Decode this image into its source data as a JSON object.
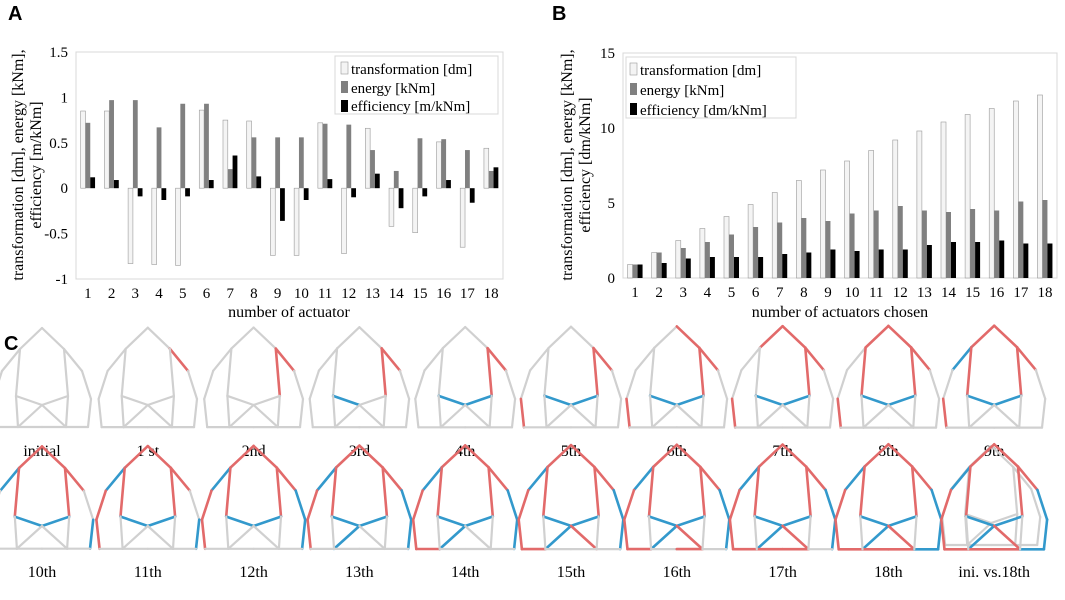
{
  "panel_labels": {
    "a": "A",
    "b": "B",
    "c": "C"
  },
  "colors": {
    "transformation": "#f4f4f4",
    "energy": "#808080",
    "efficiency": "#000000",
    "red": "#e26a6a",
    "blue": "#3399cc",
    "gray": "#d0d0d0"
  },
  "chart_data": [
    {
      "id": "A",
      "type": "bar",
      "title": "",
      "xlabel": "number of actuator",
      "ylabel": "transformation [dm], energy [kNm], efficiency [m/kNm]",
      "ylabel_lines": [
        "transformation [dm], energy [kNm],",
        "efficiency [m/kNm]"
      ],
      "ylim": [
        -1,
        1.5
      ],
      "yticks": [
        -1,
        -0.5,
        0,
        0.5,
        1,
        1.5
      ],
      "ytick_labels": [
        "-1",
        "-0.5",
        "0",
        "0.5",
        "1",
        "1.5"
      ],
      "legend_position": "top-right",
      "categories": [
        "1",
        "2",
        "3",
        "4",
        "5",
        "6",
        "7",
        "8",
        "9",
        "10",
        "11",
        "12",
        "13",
        "14",
        "15",
        "16",
        "17",
        "18"
      ],
      "series": [
        {
          "name": "transformation [dm]",
          "values": [
            0.85,
            0.85,
            -0.83,
            -0.84,
            -0.85,
            0.86,
            0.75,
            0.74,
            -0.74,
            -0.74,
            0.72,
            -0.72,
            0.66,
            -0.42,
            -0.49,
            0.51,
            -0.65,
            0.44
          ]
        },
        {
          "name": "energy [kNm]",
          "values": [
            0.72,
            0.97,
            0.97,
            0.67,
            0.93,
            0.93,
            0.21,
            0.56,
            0.56,
            0.56,
            0.71,
            0.7,
            0.42,
            0.19,
            0.55,
            0.54,
            0.42,
            0.19
          ]
        },
        {
          "name": "efficiency [m/kNm]",
          "values": [
            0.12,
            0.09,
            -0.09,
            -0.13,
            -0.09,
            0.09,
            0.36,
            0.13,
            -0.36,
            -0.13,
            0.1,
            -0.1,
            0.16,
            -0.22,
            -0.09,
            0.09,
            -0.16,
            0.23
          ]
        }
      ]
    },
    {
      "id": "B",
      "type": "bar",
      "title": "",
      "xlabel": "number of actuators chosen",
      "ylabel": "transformation [dm], energy [kNm], efficiency [dm/kNm]",
      "ylabel_lines": [
        "transformation [dm], energy [kNm],",
        "efficiency [dm/kNm]"
      ],
      "ylim": [
        0,
        15
      ],
      "yticks": [
        0,
        5,
        10,
        15
      ],
      "ytick_labels": [
        "0",
        "5",
        "10",
        "15"
      ],
      "legend_position": "top-left",
      "categories": [
        "1",
        "2",
        "3",
        "4",
        "5",
        "6",
        "7",
        "8",
        "9",
        "10",
        "11",
        "12",
        "13",
        "14",
        "15",
        "16",
        "17",
        "18"
      ],
      "series": [
        {
          "name": "transformation [dm]",
          "values": [
            0.9,
            1.7,
            2.5,
            3.3,
            4.1,
            4.9,
            5.7,
            6.5,
            7.2,
            7.8,
            8.5,
            9.2,
            9.8,
            10.4,
            10.9,
            11.3,
            11.8,
            12.2
          ]
        },
        {
          "name": "energy [kNm]",
          "values": [
            0.9,
            1.7,
            2.0,
            2.4,
            2.9,
            3.4,
            3.7,
            4.0,
            3.8,
            4.3,
            4.5,
            4.8,
            4.5,
            4.4,
            4.6,
            4.5,
            5.1,
            5.2
          ]
        },
        {
          "name": "efficiency [dm/kNm]",
          "values": [
            0.9,
            1.0,
            1.3,
            1.4,
            1.4,
            1.4,
            1.6,
            1.7,
            1.9,
            1.8,
            1.9,
            1.9,
            2.2,
            2.4,
            2.4,
            2.5,
            2.3,
            2.3
          ]
        }
      ]
    }
  ],
  "stages": {
    "labels": [
      "initial",
      "1 st",
      "2nd",
      "3rd",
      "4th",
      "5th",
      "6th",
      "7th",
      "8th",
      "9th",
      "10th",
      "11th",
      "12th",
      "13th",
      "14th",
      "15th",
      "16th",
      "17th",
      "18th",
      "ini. vs.18th"
    ],
    "actuator_order": [
      4,
      8,
      9,
      10,
      11,
      2,
      1,
      7,
      3,
      12,
      5,
      6,
      13,
      15,
      14,
      17,
      16,
      18
    ],
    "actuator_color": [
      "r",
      "r",
      "b",
      "b",
      "r",
      "r",
      "r",
      "r",
      "b",
      "b",
      "r",
      "b",
      "b",
      "r",
      "r",
      "r",
      "r",
      "b"
    ]
  }
}
